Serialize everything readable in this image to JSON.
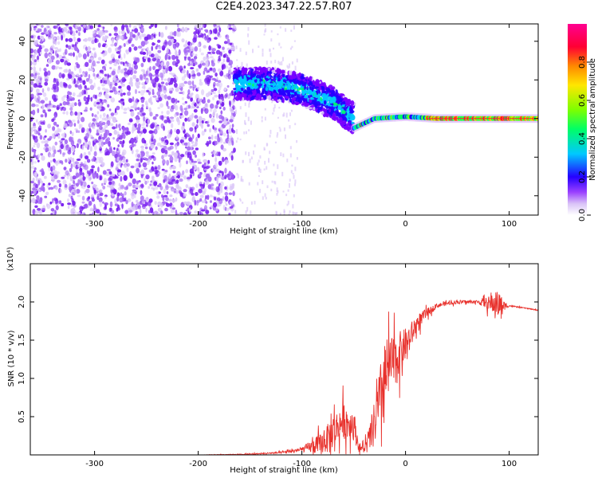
{
  "title": "C2E4.2023.347.22.57.R07",
  "chart_data": [
    {
      "type": "heatmap",
      "title": "C2E4.2023.347.22.57.R07",
      "xlabel": "Height of straight line (km)",
      "ylabel": "Frequency (Hz)",
      "xlim": [
        -362,
        128
      ],
      "ylim": [
        -50,
        49
      ],
      "xticks": [
        -300,
        -200,
        -100,
        0,
        100
      ],
      "yticks": [
        -40,
        -20,
        0,
        20,
        40
      ],
      "colorbar": {
        "label": "Normalized spectral amplitude",
        "range": [
          0.0,
          1.0
        ],
        "ticks": [
          0.0,
          0.2,
          0.4,
          0.6,
          0.8
        ],
        "colormap": [
          "#ffffff",
          "#d9c2f7",
          "#7b00ff",
          "#2500ff",
          "#00c8ff",
          "#00ff66",
          "#7dff00",
          "#ffe600",
          "#ff8800",
          "#ff0033",
          "#ff0090"
        ]
      },
      "regions": [
        {
          "name": "noise",
          "x": [
            -362,
            -165
          ],
          "freq_range": [
            -50,
            49
          ],
          "amplitude": 0.1
        },
        {
          "name": "scattered signal",
          "x": [
            -165,
            -50
          ],
          "center_freq": [
            18,
            18,
            15,
            8,
            0
          ],
          "center_x": [
            -165,
            -130,
            -100,
            -70,
            -50
          ],
          "amplitude": 0.25
        },
        {
          "name": "carrier line",
          "x": [
            -50,
            128
          ],
          "center_freq": [
            -5,
            0,
            1,
            0,
            0
          ],
          "center_x": [
            -50,
            -30,
            0,
            30,
            128
          ],
          "amplitude": 0.75
        }
      ],
      "grid": false,
      "legend": "colorbar-right"
    },
    {
      "type": "line",
      "xlabel": "Height of straight line (km)",
      "ylabel": "SNR (10 * v/v)",
      "y_multiplier": "(x10⁴)",
      "xlim": [
        -362,
        128
      ],
      "ylim": [
        0,
        2.5
      ],
      "xticks": [
        -300,
        -200,
        -100,
        0,
        100
      ],
      "yticks": [
        0.5,
        1.0,
        1.5,
        2.0
      ],
      "color": "#e8312c",
      "series": [
        {
          "x": [
            -362,
            -300,
            -200,
            -150,
            -120,
            -100,
            -80,
            -70,
            -60,
            -50,
            -45,
            -40,
            -35,
            -30,
            -25,
            -20,
            -15,
            -10,
            -5,
            0,
            5,
            10,
            20,
            30,
            40,
            50,
            60,
            70,
            80,
            90,
            95,
            100,
            110,
            120,
            128
          ],
          "y": [
            0.0,
            0.0,
            0.0,
            0.01,
            0.03,
            0.07,
            0.15,
            0.3,
            0.45,
            0.4,
            0.1,
            0.08,
            0.2,
            0.4,
            0.7,
            1.0,
            1.15,
            1.25,
            1.35,
            1.45,
            1.55,
            1.7,
            1.85,
            1.95,
            1.98,
            2.0,
            2.0,
            2.0,
            1.98,
            1.97,
            1.95,
            1.95,
            1.93,
            1.91,
            1.89
          ],
          "noise_band": [
            0.0,
            0.0,
            0.0,
            0.01,
            0.02,
            0.05,
            0.25,
            0.35,
            0.4,
            0.35,
            0.1,
            0.1,
            0.3,
            0.5,
            0.7,
            0.9,
            0.6,
            0.55,
            0.45,
            0.35,
            0.3,
            0.2,
            0.1,
            0.05,
            0.04,
            0.04,
            0.04,
            0.04,
            0.15,
            0.3,
            0.1,
            0.02,
            0.01,
            0.01,
            0.01
          ]
        }
      ],
      "grid": false
    }
  ]
}
